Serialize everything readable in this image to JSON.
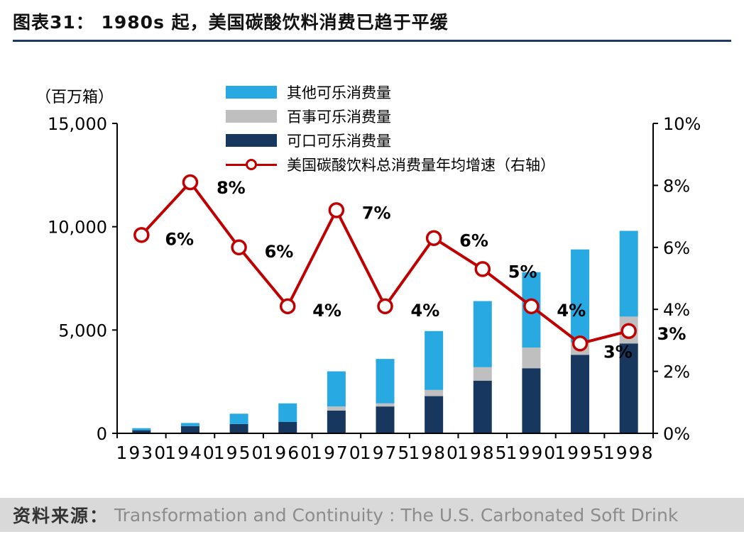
{
  "header": {
    "title": "图表31： 1980s 起，美国碳酸饮料消费已趋于平缓"
  },
  "chart_data": {
    "type": "bar+line",
    "unit_label": "（百万箱）",
    "categories": [
      "1930",
      "1940",
      "1950",
      "1960",
      "1970",
      "1975",
      "1980",
      "1985",
      "1990",
      "1995",
      "1998"
    ],
    "bar_series": [
      {
        "name": "可口可乐消费量",
        "color": "#17375E",
        "values": [
          150,
          350,
          450,
          550,
          1100,
          1300,
          1800,
          2550,
          3150,
          3800,
          4350
        ]
      },
      {
        "name": "百事可乐消费量",
        "color": "#BFBFBF",
        "values": [
          0,
          0,
          0,
          0,
          200,
          150,
          300,
          650,
          1000,
          600,
          1300
        ]
      },
      {
        "name": "其他可乐消费量",
        "color": "#29A9E1",
        "values": [
          100,
          150,
          500,
          900,
          1700,
          2150,
          2850,
          3200,
          3650,
          4500,
          4150
        ]
      }
    ],
    "line_series": {
      "name": "美国碳酸饮料总消费量年均增速（右轴）",
      "color": "#C00000",
      "values": [
        6.4,
        8.1,
        6.0,
        4.1,
        7.2,
        4.1,
        6.3,
        5.3,
        4.1,
        2.9,
        3.3
      ],
      "labels": [
        "6%",
        "8%",
        "6%",
        "4%",
        "7%",
        "4%",
        "6%",
        "5%",
        "4%",
        "3%",
        "3%"
      ]
    },
    "left_axis": {
      "min": 0,
      "max": 15000,
      "tick_values": [
        0,
        5000,
        10000,
        15000
      ],
      "ticks": [
        "0",
        "5,000",
        "10,000",
        "15,000"
      ]
    },
    "right_axis": {
      "min": 0,
      "max": 10,
      "tick_values": [
        0,
        2,
        4,
        6,
        8,
        10
      ],
      "ticks": [
        "0%",
        "2%",
        "4%",
        "6%",
        "8%",
        "10%"
      ]
    },
    "legend": [
      "其他可乐消费量",
      "百事可乐消费量",
      "可口可乐消费量",
      "美国碳酸饮料总消费量年均增速（右轴）"
    ],
    "legend_position": "top-center",
    "grid": false
  },
  "footer": {
    "source_label": "资料来源：",
    "source_text": "Transformation and Continuity : The U.S. Carbonated Soft Drink"
  }
}
